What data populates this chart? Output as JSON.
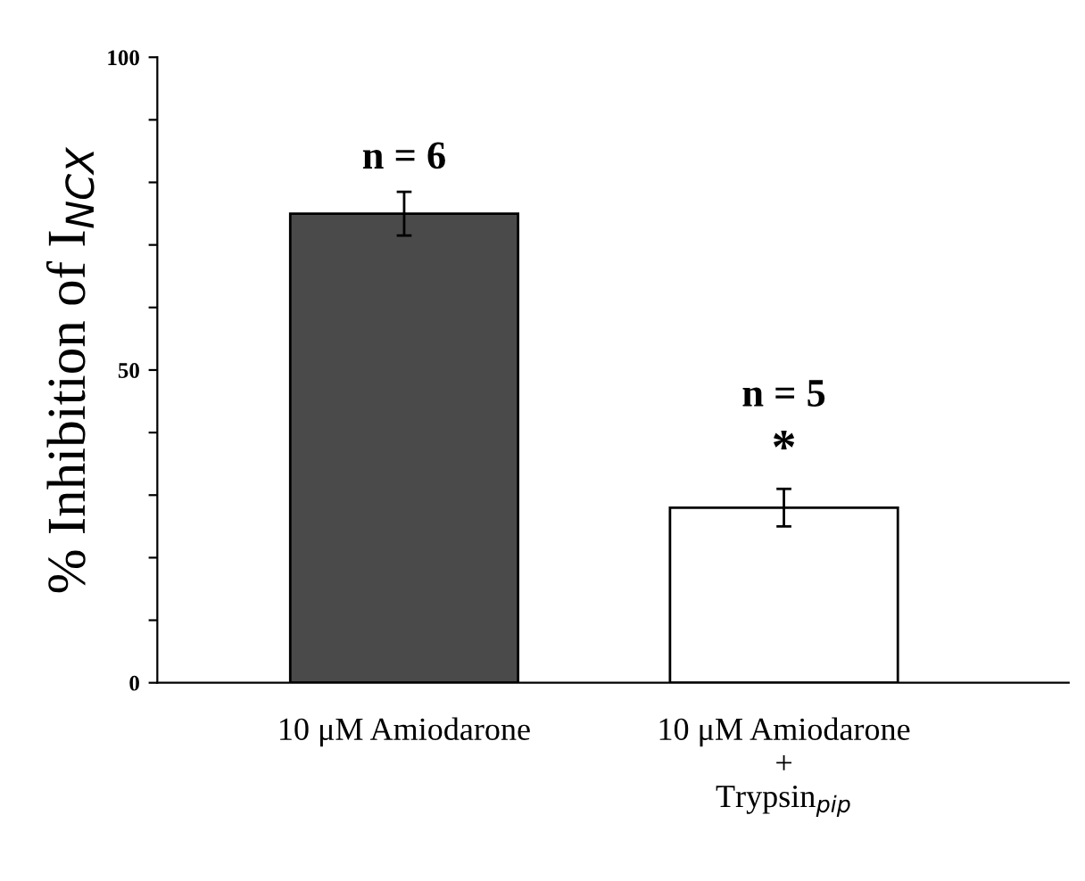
{
  "chart_data": {
    "type": "bar",
    "ylabel": "% Inhibition of I$_{NCX}$",
    "categories": [
      "10 μM Amiodarone",
      "10 μM Amiodarone\n+\nTrypsin$_{pip}$"
    ],
    "values": [
      75,
      28
    ],
    "errors": [
      3.5,
      3
    ],
    "colors": [
      "#4a4a4a",
      "#ffffff"
    ],
    "ylim": [
      0,
      100
    ],
    "yticks": [
      0,
      {
        "value": 10,
        "label": null
      },
      {
        "value": 20,
        "label": null
      },
      {
        "value": 30,
        "label": null
      },
      {
        "value": 40,
        "label": null
      },
      50,
      {
        "value": 60,
        "label": null
      },
      {
        "value": 70,
        "label": null
      },
      {
        "value": 80,
        "label": null
      },
      {
        "value": 90,
        "label": null
      },
      100
    ],
    "annotations": [
      "n = 6",
      "n = 5",
      "*"
    ],
    "grid": false,
    "legend": false
  }
}
